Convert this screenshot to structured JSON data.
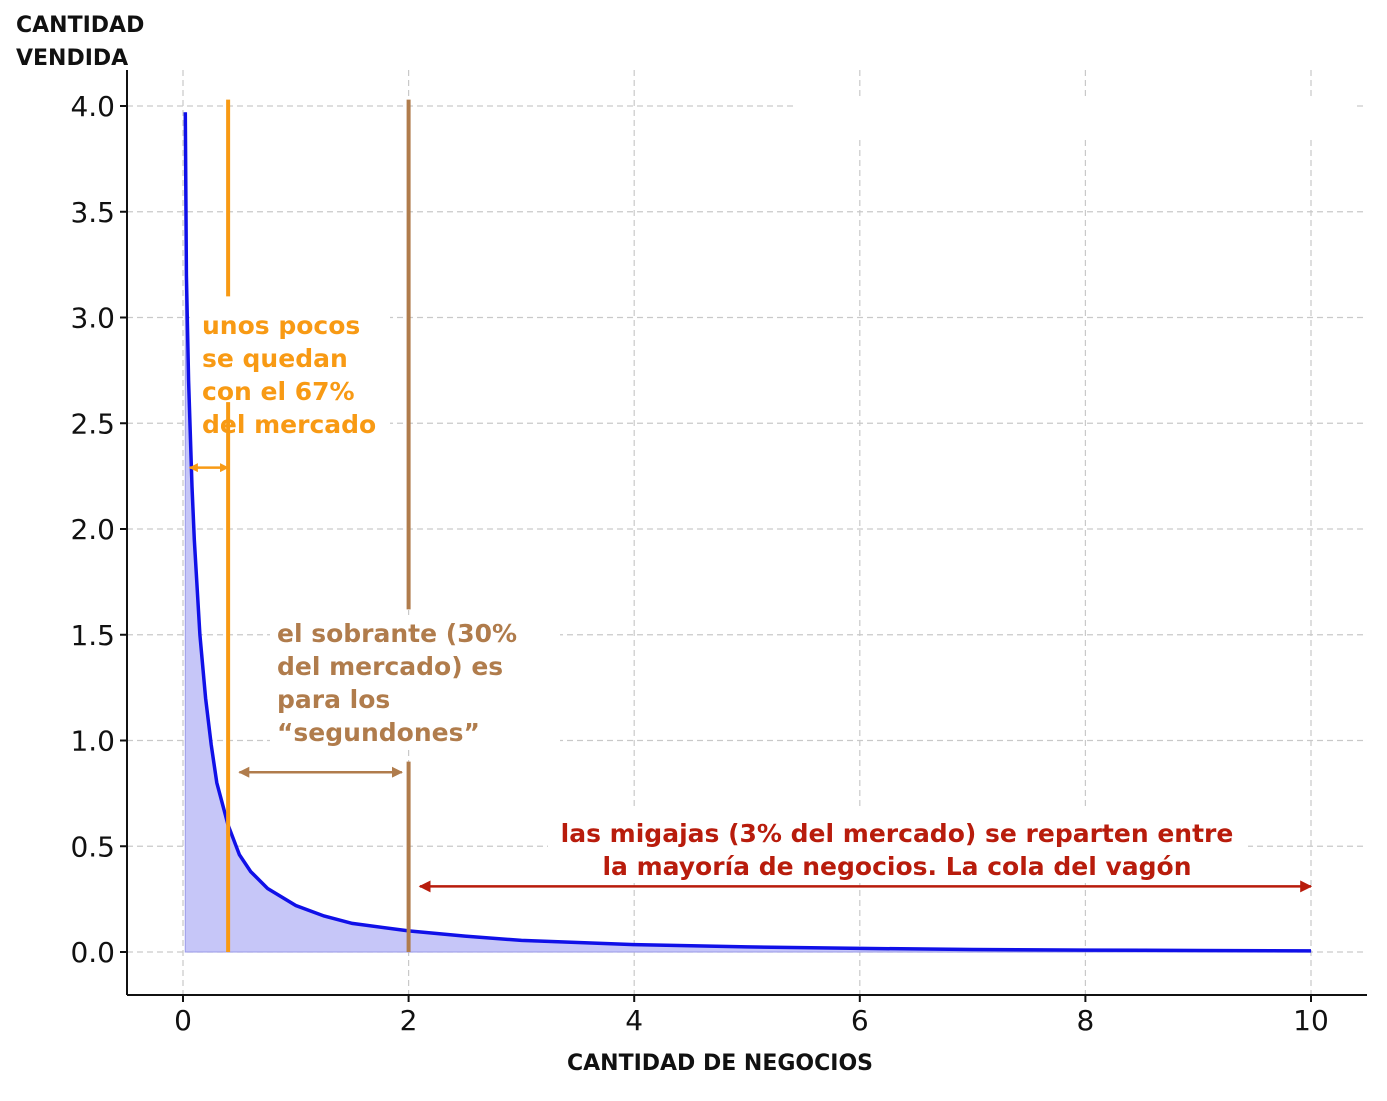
{
  "chart_data": {
    "type": "area",
    "title": "",
    "ylabel_lines": [
      "CANTIDAD",
      "VENDIDA"
    ],
    "xlabel": "CANTIDAD DE NEGOCIOS",
    "xlim": [
      -0.5,
      10.5
    ],
    "ylim": [
      -0.2,
      4.15
    ],
    "xticks": [
      "0",
      "2",
      "4",
      "6",
      "8",
      "10"
    ],
    "yticks": [
      "0.0",
      "0.5",
      "1.0",
      "1.5",
      "2.0",
      "2.5",
      "3.0",
      "3.5",
      "4.0"
    ],
    "grid": true,
    "series": [
      {
        "color": "#1010e8",
        "fill_color": "#c6c6f8",
        "fill_from_x": 0.02,
        "points": [
          [
            0.02,
            3.97
          ],
          [
            0.03,
            3.2
          ],
          [
            0.05,
            2.7
          ],
          [
            0.08,
            2.2
          ],
          [
            0.1,
            1.95
          ],
          [
            0.15,
            1.5
          ],
          [
            0.2,
            1.2
          ],
          [
            0.25,
            0.98
          ],
          [
            0.3,
            0.8
          ],
          [
            0.4,
            0.6
          ],
          [
            0.5,
            0.46
          ],
          [
            0.6,
            0.38
          ],
          [
            0.75,
            0.3
          ],
          [
            1.0,
            0.22
          ],
          [
            1.25,
            0.17
          ],
          [
            1.5,
            0.135
          ],
          [
            2.0,
            0.1
          ],
          [
            2.5,
            0.075
          ],
          [
            3.0,
            0.055
          ],
          [
            4.0,
            0.035
          ],
          [
            5.0,
            0.024
          ],
          [
            6.0,
            0.017
          ],
          [
            7.0,
            0.012
          ],
          [
            8.0,
            0.009
          ],
          [
            9.0,
            0.007
          ],
          [
            10.0,
            0.005
          ]
        ]
      }
    ],
    "vertical_lines": [
      {
        "x": 0.4,
        "y_from": 0.0,
        "y_to": 4.03,
        "color": "#f89a14",
        "gap_from": 3.1,
        "gap_to": 2.6
      },
      {
        "x": 2.0,
        "y_from": 0.0,
        "y_to": 4.03,
        "color": "#b07c4c",
        "gap_from": 1.62,
        "gap_to": 0.9
      }
    ],
    "arrows": [
      {
        "x1": 0.06,
        "x2": 0.4,
        "y": 2.29,
        "color": "#f89a14"
      },
      {
        "x1": 0.5,
        "x2": 1.94,
        "y": 0.85,
        "color": "#b07c4c"
      },
      {
        "x1": 2.1,
        "x2": 10.0,
        "y": 0.31,
        "color": "#b81c0c"
      }
    ],
    "annotations": [
      {
        "lines": [
          "unos pocos",
          "se quedan",
          "con el 67%",
          "del mercado"
        ],
        "color": "#f89a14",
        "anchor": "start"
      },
      {
        "lines": [
          "el sobrante (30%",
          "del mercado) es",
          "para los",
          "“segundones”"
        ],
        "color": "#b07c4c",
        "anchor": "start"
      },
      {
        "lines": [
          "las migajas (3% del mercado) se reparten entre",
          "la mayoría de negocios. La cola del vagón"
        ],
        "color": "#b81c0c",
        "anchor": "middle"
      }
    ]
  }
}
